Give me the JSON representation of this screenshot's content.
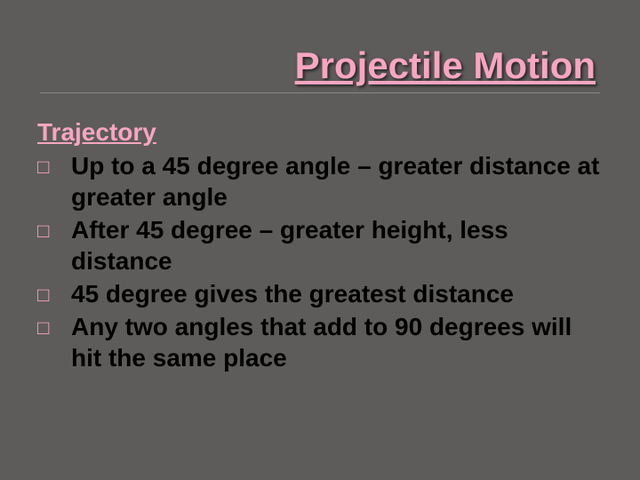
{
  "slide": {
    "title": "Projectile Motion",
    "subtitle": "Trajectory",
    "bullets": [
      "Up to a 45 degree angle – greater distance at greater angle",
      "After 45 degree – greater height, less distance",
      "45 degree gives the greatest distance",
      "Any two angles that add to 90 degrees will hit the same place"
    ],
    "colors": {
      "background": "#5d5c5a",
      "title_color": "#f8a5c2",
      "subtitle_color": "#f8a5c2",
      "bullet_marker_color": "#f8a5c2",
      "bullet_text_color": "#000000",
      "divider_color": "#8a8886"
    },
    "typography": {
      "title_fontsize": 42,
      "subtitle_fontsize": 28,
      "bullet_fontsize": 28,
      "font_family": "Arial",
      "font_weight": "bold"
    },
    "bullet_marker": "□"
  }
}
